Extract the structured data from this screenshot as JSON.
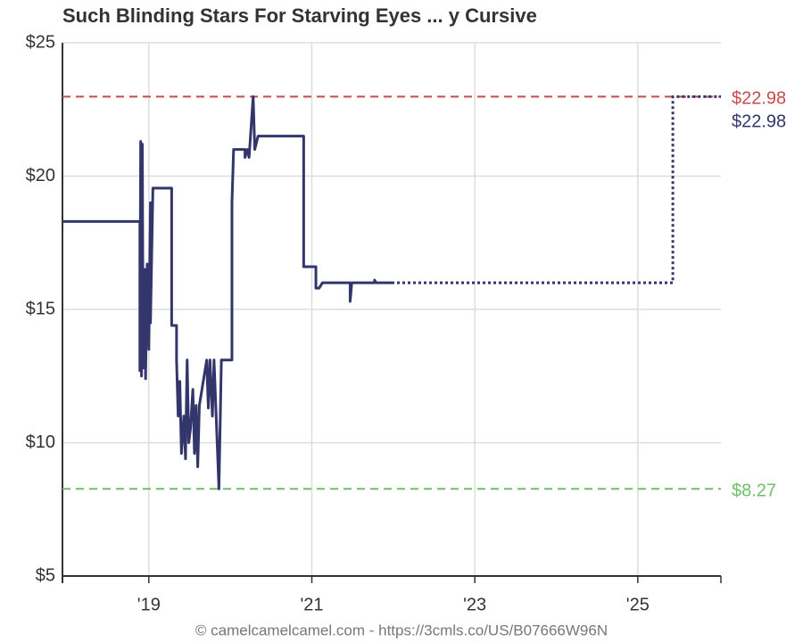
{
  "chart_data": {
    "type": "line",
    "title": "Such Blinding Stars For Starving Eyes ... y Cursive",
    "footer": "© camelcamelcamel.com - https://3cmls.co/US/B07666W96N",
    "x": [
      2017.94,
      2018.89,
      2018.89,
      2018.9,
      2018.91,
      2018.92,
      2018.93,
      2018.95,
      2018.96,
      2018.98,
      2019.0,
      2019.02,
      2019.02,
      2019.05,
      2019.28,
      2019.28,
      2019.34,
      2019.34,
      2019.36,
      2019.38,
      2019.4,
      2019.43,
      2019.45,
      2019.47,
      2019.49,
      2019.51,
      2019.54,
      2019.56,
      2019.58,
      2019.6,
      2019.62,
      2019.71,
      2019.73,
      2019.75,
      2019.78,
      2019.8,
      2019.82,
      2019.86,
      2019.89,
      2020.02,
      2020.02,
      2020.04,
      2020.18,
      2020.18,
      2020.21,
      2020.23,
      2020.28,
      2020.3,
      2020.34,
      2020.9,
      2020.9,
      2021.05,
      2021.05,
      2021.09,
      2021.13,
      2021.47,
      2021.47,
      2021.49,
      2021.77,
      2021.77,
      2021.79,
      2021.98,
      2025.43,
      2025.43,
      2026.02
    ],
    "series": [
      {
        "color": "#33366b",
        "style": "solid",
        "values": [
          18.3,
          18.3,
          12.7,
          21.3,
          12.5,
          21.2,
          12.8,
          16.5,
          12.4,
          16.7,
          13.5,
          19.0,
          14.5,
          19.55,
          19.55,
          14.4,
          14.4,
          13.1,
          11.0,
          12.3,
          9.6,
          11.0,
          9.4,
          13.1,
          10.0,
          10.5,
          12.0,
          9.6,
          11.4,
          9.1,
          11.4,
          13.1,
          11.3,
          13.1,
          11.0,
          13.1,
          11.5,
          8.27,
          13.1,
          13.1,
          19.0,
          21.0,
          21.0,
          20.7,
          21.0,
          20.7,
          22.98,
          21.0,
          21.5,
          21.5,
          16.6,
          16.6,
          15.8,
          15.8,
          16.0,
          16.0,
          15.3,
          16.0,
          16.0,
          16.1,
          16.0,
          16.0,
          null,
          null,
          null
        ]
      },
      {
        "color": "#33366b",
        "style": "dotted",
        "values": [
          null,
          null,
          null,
          null,
          null,
          null,
          null,
          null,
          null,
          null,
          null,
          null,
          null,
          null,
          null,
          null,
          null,
          null,
          null,
          null,
          null,
          null,
          null,
          null,
          null,
          null,
          null,
          null,
          null,
          null,
          null,
          null,
          null,
          null,
          null,
          null,
          null,
          null,
          null,
          null,
          null,
          null,
          null,
          null,
          null,
          null,
          null,
          null,
          null,
          null,
          null,
          null,
          null,
          null,
          null,
          null,
          null,
          null,
          null,
          null,
          null,
          16.0,
          16.0,
          22.98,
          22.98
        ]
      }
    ],
    "reference_lines": [
      {
        "value": 22.98,
        "label": "$22.98",
        "color": "#c94a4a"
      },
      {
        "value": 8.27,
        "label": "$8.27",
        "color": "#6cc066"
      }
    ],
    "current": {
      "value": 22.98,
      "label": "$22.98",
      "color": "#33366b"
    },
    "xlim": [
      2017.94,
      2026.02
    ],
    "xticks": [
      {
        "value": 2019,
        "label": "'19"
      },
      {
        "value": 2021,
        "label": "'21"
      },
      {
        "value": 2023,
        "label": "'23"
      },
      {
        "value": 2025,
        "label": "'25"
      }
    ],
    "ylim": [
      5,
      25
    ],
    "yticks": [
      {
        "value": 5,
        "label": "$5"
      },
      {
        "value": 10,
        "label": "$10"
      },
      {
        "value": 15,
        "label": "$15"
      },
      {
        "value": 20,
        "label": "$20"
      },
      {
        "value": 25,
        "label": "$25"
      }
    ],
    "grid": true
  }
}
